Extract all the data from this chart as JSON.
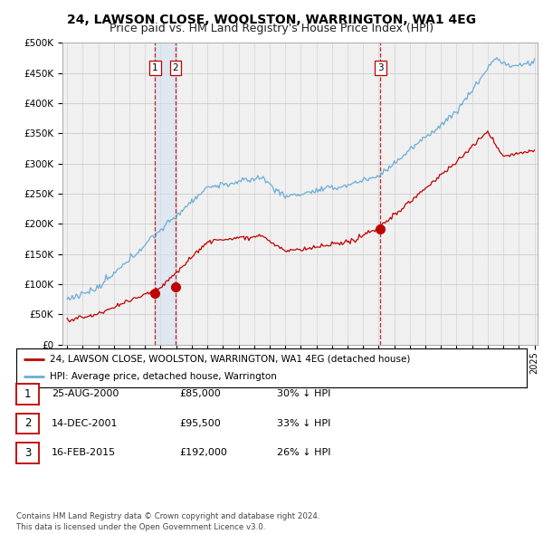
{
  "title": "24, LAWSON CLOSE, WOOLSTON, WARRINGTON, WA1 4EG",
  "subtitle": "Price paid vs. HM Land Registry's House Price Index (HPI)",
  "ylim": [
    0,
    500000
  ],
  "yticks": [
    0,
    50000,
    100000,
    150000,
    200000,
    250000,
    300000,
    350000,
    400000,
    450000,
    500000
  ],
  "ytick_labels": [
    "£0",
    "£50K",
    "£100K",
    "£150K",
    "£200K",
    "£250K",
    "£300K",
    "£350K",
    "£400K",
    "£450K",
    "£500K"
  ],
  "hpi_color": "#6aaed6",
  "price_color": "#c00000",
  "vline_color": "#c00000",
  "vline_fill": "#d0e0f0",
  "grid_color": "#cccccc",
  "bg_color": "#ffffff",
  "plot_bg_color": "#f0f0f0",
  "transactions": [
    {
      "date": 2000.646,
      "price": 85000,
      "label": "1"
    },
    {
      "date": 2001.951,
      "price": 95500,
      "label": "2"
    },
    {
      "date": 2015.12,
      "price": 192000,
      "label": "3"
    }
  ],
  "legend_entries": [
    "24, LAWSON CLOSE, WOOLSTON, WARRINGTON, WA1 4EG (detached house)",
    "HPI: Average price, detached house, Warrington"
  ],
  "table_rows": [
    [
      "1",
      "25-AUG-2000",
      "£85,000",
      "30% ↓ HPI"
    ],
    [
      "2",
      "14-DEC-2001",
      "£95,500",
      "33% ↓ HPI"
    ],
    [
      "3",
      "16-FEB-2015",
      "£192,000",
      "26% ↓ HPI"
    ]
  ],
  "footnote": "Contains HM Land Registry data © Crown copyright and database right 2024.\nThis data is licensed under the Open Government Licence v3.0.",
  "title_fontsize": 10,
  "subtitle_fontsize": 9
}
